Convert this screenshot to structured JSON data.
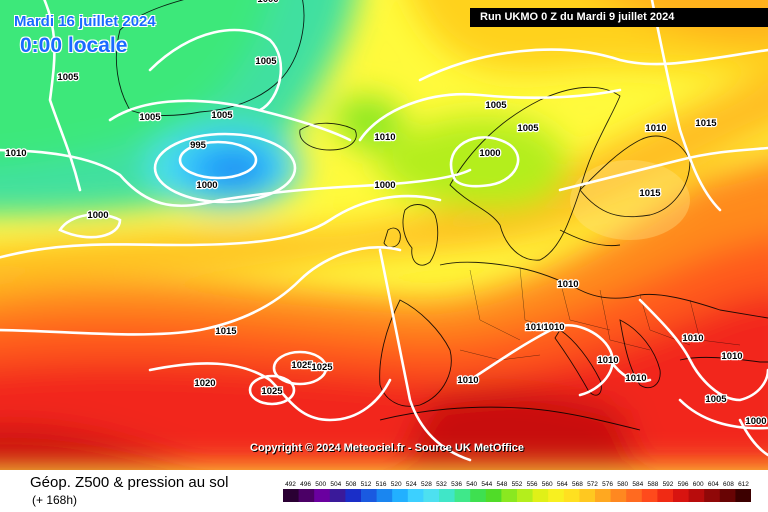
{
  "header": {
    "date": "Mardi 16 juillet 2024",
    "local_time": "0:00 locale",
    "run_info": "Run UKMO 0 Z du Mardi 9 juillet 2024"
  },
  "copyright": "Copyright © 2024 Meteociel.fr - Source UK MetOffice",
  "footer": {
    "title": "Géop. Z500 & pression au sol",
    "subtitle": "(+ 168h)"
  },
  "colors": {
    "palette": [
      "#2a0033",
      "#4b0066",
      "#6a00a0",
      "#3a1a9a",
      "#1a2ec8",
      "#1a5ae0",
      "#1a86f0",
      "#22b0ff",
      "#3cd0ff",
      "#4de0f0",
      "#40e6c8",
      "#3fe88a",
      "#3ee050",
      "#50dc28",
      "#8ae820",
      "#b4ee1c",
      "#e0f018",
      "#f8f020",
      "#ffe020",
      "#ffc820",
      "#ffa820",
      "#ff8820",
      "#ff6a20",
      "#ff4a1c",
      "#f02a14",
      "#d81410",
      "#b80c0c",
      "#900808",
      "#680404",
      "#3c0000"
    ]
  },
  "scale": {
    "labels": [
      "492",
      "496",
      "500",
      "504",
      "508",
      "512",
      "516",
      "520",
      "524",
      "528",
      "532",
      "536",
      "540",
      "544",
      "548",
      "552",
      "556",
      "560",
      "564",
      "568",
      "572",
      "576",
      "580",
      "584",
      "588",
      "592",
      "596",
      "600",
      "604",
      "608",
      "612"
    ]
  },
  "isobars": [
    {
      "label": "1000"
    },
    {
      "label": "1005"
    },
    {
      "label": "1005"
    },
    {
      "label": "1005"
    },
    {
      "label": "1005"
    },
    {
      "label": "995"
    },
    {
      "label": "1000"
    },
    {
      "label": "1010"
    },
    {
      "label": "1000"
    },
    {
      "label": "1005"
    },
    {
      "label": "1010"
    },
    {
      "label": "1005"
    },
    {
      "label": "1000"
    },
    {
      "label": "1000"
    },
    {
      "label": "1010"
    },
    {
      "label": "1015"
    },
    {
      "label": "1015"
    },
    {
      "label": "1010"
    },
    {
      "label": "1010"
    },
    {
      "label": "1010"
    },
    {
      "label": "1015"
    },
    {
      "label": "1020"
    },
    {
      "label": "1025"
    },
    {
      "label": "1025"
    },
    {
      "label": "1025"
    },
    {
      "label": "1010"
    },
    {
      "label": "1010"
    },
    {
      "label": "1010"
    },
    {
      "label": "1010"
    },
    {
      "label": "1010"
    },
    {
      "label": "1005"
    },
    {
      "label": "1000"
    }
  ]
}
